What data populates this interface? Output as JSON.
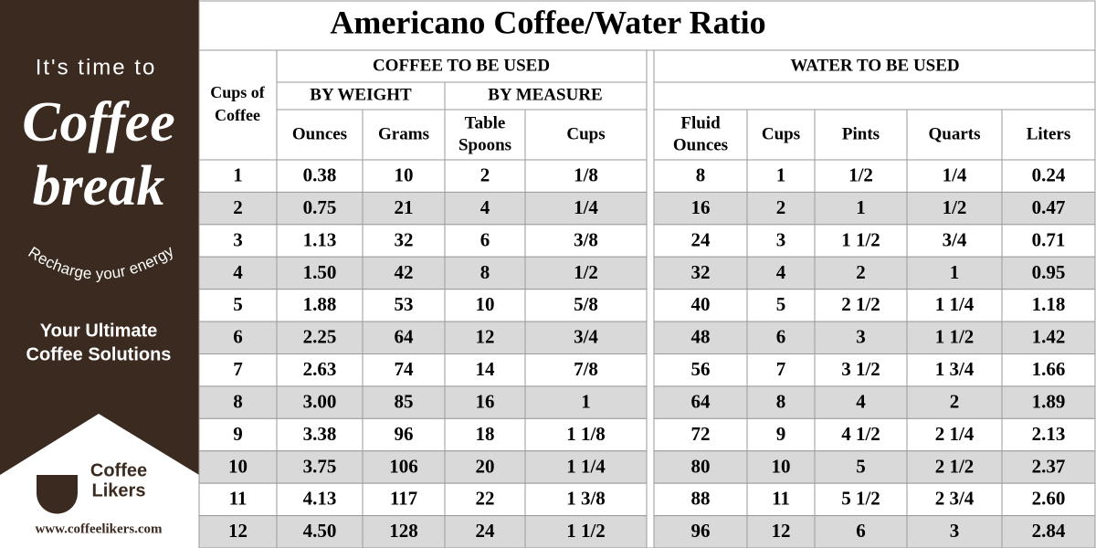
{
  "sidebar": {
    "tagline": "It's time to",
    "script_1": "Coffee",
    "script_2": "break",
    "arc_text": "Recharge your energy",
    "slogan": [
      "Your Ultimate",
      "Coffee Solutions"
    ],
    "logo": [
      "Coffee",
      "Likers"
    ],
    "url": "www.coffeelikers.com"
  },
  "table": {
    "title": "Americano Coffee/Water Ratio",
    "cups_header": [
      "Cups of",
      "Coffee"
    ],
    "coffee_header": "COFFEE TO BE USED",
    "water_header": "WATER TO BE USED",
    "by_weight": "BY WEIGHT",
    "by_measure": "BY MEASURE",
    "columns": [
      [
        "Ounces"
      ],
      [
        "Grams"
      ],
      [
        "Table",
        "Spoons"
      ],
      [
        "Cups"
      ],
      [
        "Fluid",
        "Ounces"
      ],
      [
        "Cups"
      ],
      [
        "Pints"
      ],
      [
        "Quarts"
      ],
      [
        "Liters"
      ]
    ],
    "rows": [
      [
        "1",
        "0.38",
        "10",
        "2",
        "1/8",
        "8",
        "1",
        "1/2",
        "1/4",
        "0.24"
      ],
      [
        "2",
        "0.75",
        "21",
        "4",
        "1/4",
        "16",
        "2",
        "1",
        "1/2",
        "0.47"
      ],
      [
        "3",
        "1.13",
        "32",
        "6",
        "3/8",
        "24",
        "3",
        "1 1/2",
        "3/4",
        "0.71"
      ],
      [
        "4",
        "1.50",
        "42",
        "8",
        "1/2",
        "32",
        "4",
        "2",
        "1",
        "0.95"
      ],
      [
        "5",
        "1.88",
        "53",
        "10",
        "5/8",
        "40",
        "5",
        "2 1/2",
        "1 1/4",
        "1.18"
      ],
      [
        "6",
        "2.25",
        "64",
        "12",
        "3/4",
        "48",
        "6",
        "3",
        "1 1/2",
        "1.42"
      ],
      [
        "7",
        "2.63",
        "74",
        "14",
        "7/8",
        "56",
        "7",
        "3 1/2",
        "1 3/4",
        "1.66"
      ],
      [
        "8",
        "3.00",
        "85",
        "16",
        "1",
        "64",
        "8",
        "4",
        "2",
        "1.89"
      ],
      [
        "9",
        "3.38",
        "96",
        "18",
        "1 1/8",
        "72",
        "9",
        "4 1/2",
        "2 1/4",
        "2.13"
      ],
      [
        "10",
        "3.75",
        "106",
        "20",
        "1 1/4",
        "80",
        "10",
        "5",
        "2 1/2",
        "2.37"
      ],
      [
        "11",
        "4.13",
        "117",
        "22",
        "1 3/8",
        "88",
        "11",
        "5 1/2",
        "2 3/4",
        "2.60"
      ],
      [
        "12",
        "4.50",
        "128",
        "24",
        "1 1/2",
        "96",
        "12",
        "6",
        "3",
        "2.84"
      ]
    ]
  }
}
